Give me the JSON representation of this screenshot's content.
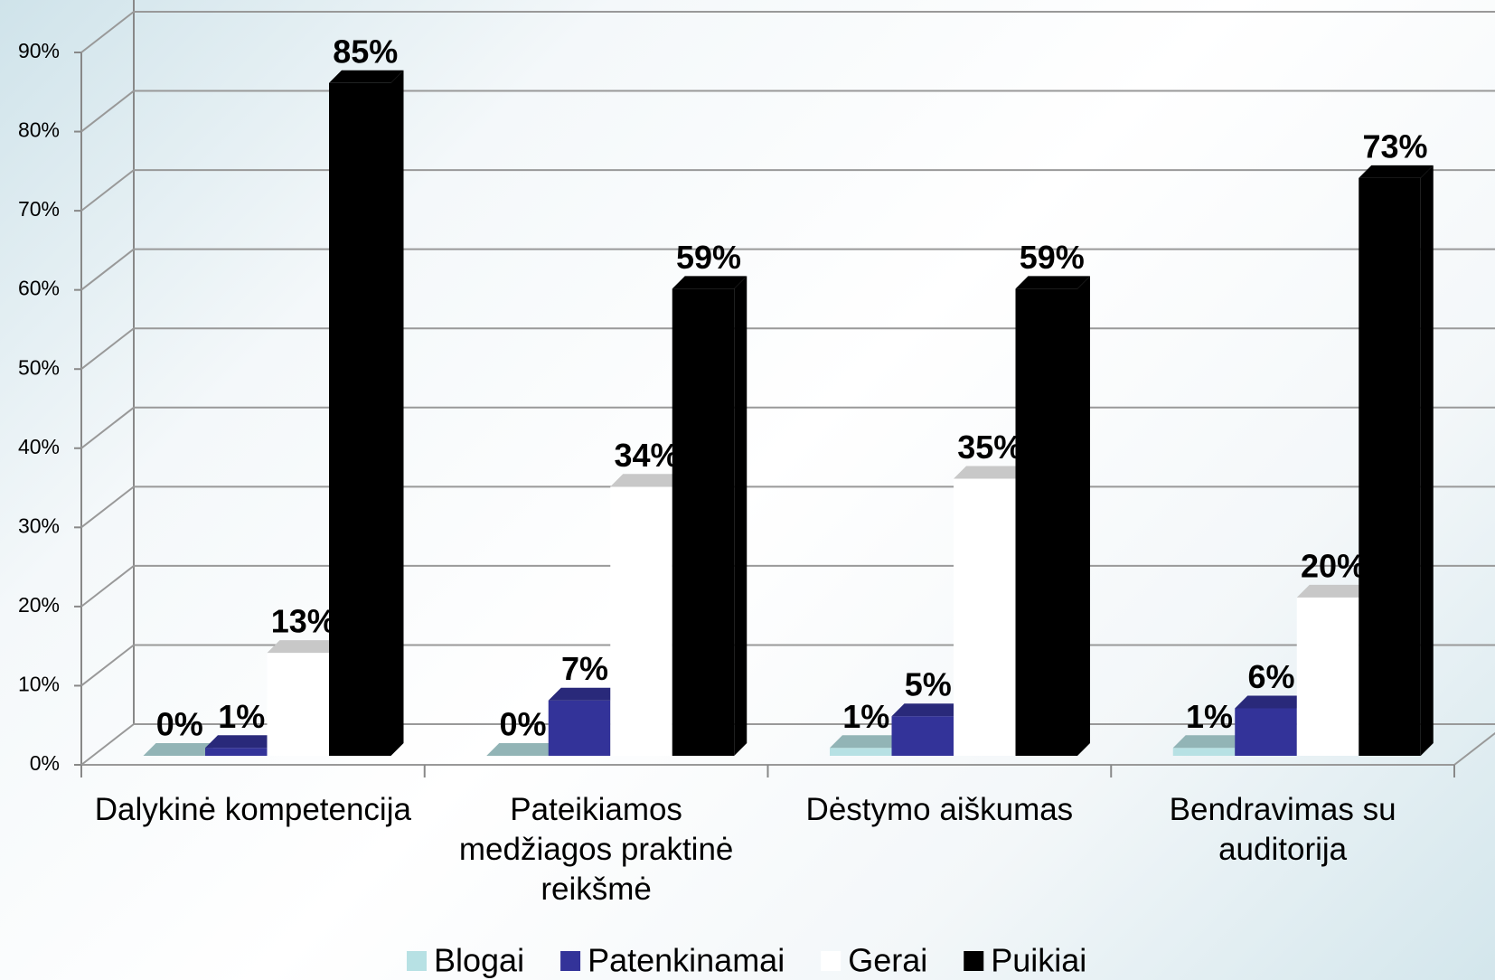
{
  "chart_data": {
    "type": "bar3d",
    "categories": [
      "Dalykinė kompetencija",
      "Pateikiamos medžiagos praktinė reikšmė",
      "Dėstymo aiškumas",
      "Bendravimas su auditorija"
    ],
    "series": [
      {
        "name": "Blogai",
        "color": "#b7e1e4",
        "values": [
          0,
          0,
          1,
          1
        ],
        "value_labels": [
          "0%",
          "0%",
          "1%",
          "1%"
        ]
      },
      {
        "name": "Patenkinamai",
        "color": "#333399",
        "values": [
          1,
          7,
          5,
          6
        ],
        "value_labels": [
          "1%",
          "7%",
          "5%",
          "6%"
        ]
      },
      {
        "name": "Gerai",
        "color": "#ffffff",
        "values": [
          13,
          34,
          35,
          20
        ],
        "value_labels": [
          "13%",
          "34%",
          "35%",
          "20%"
        ]
      },
      {
        "name": "Puikiai",
        "color": "#000000",
        "values": [
          85,
          59,
          59,
          73
        ],
        "value_labels": [
          "85%",
          "59%",
          "59%",
          "73%"
        ]
      }
    ],
    "ylim": [
      0,
      90
    ],
    "yticks": [
      {
        "value": 0,
        "label": "0%"
      },
      {
        "value": 10,
        "label": "10%"
      },
      {
        "value": 20,
        "label": "20%"
      },
      {
        "value": 30,
        "label": "30%"
      },
      {
        "value": 40,
        "label": "40%"
      },
      {
        "value": 50,
        "label": "50%"
      },
      {
        "value": 60,
        "label": "60%"
      },
      {
        "value": 70,
        "label": "70%"
      },
      {
        "value": 80,
        "label": "80%"
      },
      {
        "value": 90,
        "label": "90%"
      }
    ],
    "grid": true,
    "legend": "bottom"
  }
}
